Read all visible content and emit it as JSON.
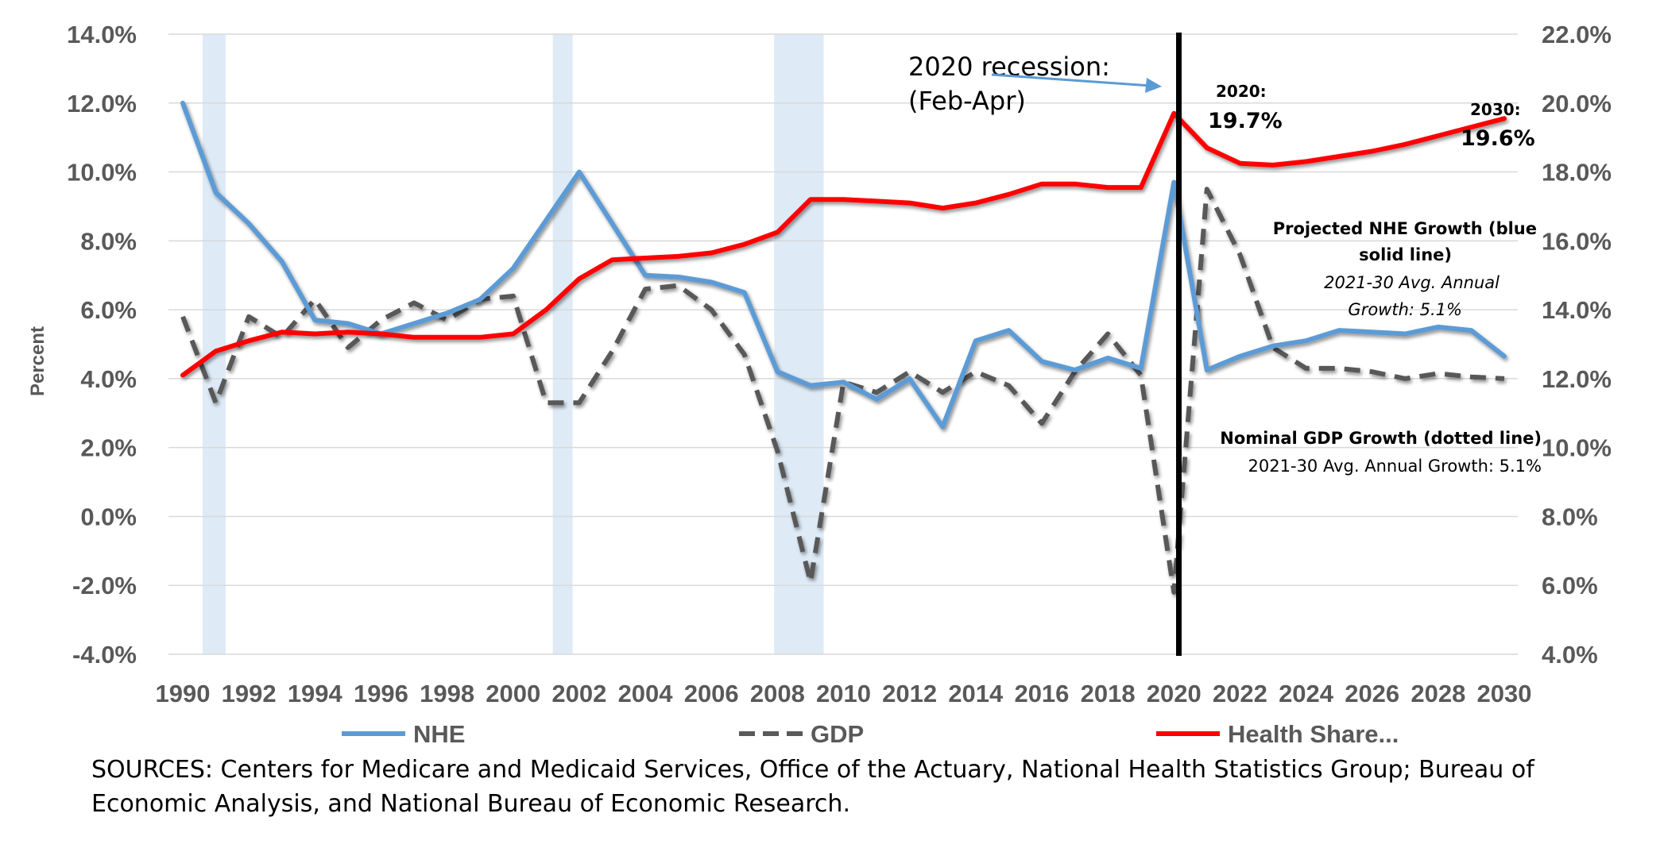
{
  "chart_data": {
    "type": "line",
    "x": [
      1990,
      1991,
      1992,
      1993,
      1994,
      1995,
      1996,
      1997,
      1998,
      1999,
      2000,
      2001,
      2002,
      2003,
      2004,
      2005,
      2006,
      2007,
      2008,
      2009,
      2010,
      2011,
      2012,
      2013,
      2014,
      2015,
      2016,
      2017,
      2018,
      2019,
      2020,
      2021,
      2022,
      2023,
      2024,
      2025,
      2026,
      2027,
      2028,
      2029,
      2030
    ],
    "x_ticks": [
      "1990",
      "1992",
      "1994",
      "1996",
      "1998",
      "2000",
      "2002",
      "2004",
      "2006",
      "2008",
      "2010",
      "2012",
      "2014",
      "2016",
      "2018",
      "2020",
      "2022",
      "2024",
      "2026",
      "2028",
      "2030"
    ],
    "ylabel": "Percent",
    "ylim": [
      -4,
      14
    ],
    "y_ticks": [
      "14.0%",
      "12.0%",
      "10.0%",
      "8.0%",
      "6.0%",
      "4.0%",
      "2.0%",
      "0.0%",
      "-2.0%",
      "-4.0%"
    ],
    "y2lim": [
      4,
      22
    ],
    "y2_ticks": [
      "22.0%",
      "20.0%",
      "18.0%",
      "16.0%",
      "14.0%",
      "12.0%",
      "10.0%",
      "8.0%",
      "6.0%",
      "4.0%"
    ],
    "series": [
      {
        "name": "NHE",
        "axis": "left",
        "style": "solid",
        "color": "#5B9BD5",
        "values": [
          12.0,
          9.4,
          8.5,
          7.4,
          5.7,
          5.6,
          5.3,
          5.6,
          5.9,
          6.3,
          7.2,
          8.6,
          10.0,
          8.5,
          7.0,
          6.95,
          6.8,
          6.5,
          4.2,
          3.8,
          3.9,
          3.4,
          4.0,
          2.6,
          5.1,
          5.4,
          4.5,
          4.25,
          4.6,
          4.3,
          9.7,
          4.25,
          4.65,
          4.95,
          5.1,
          5.4,
          5.35,
          5.3,
          5.5,
          5.4,
          4.65
        ]
      },
      {
        "name": "GDP",
        "axis": "left",
        "style": "dashed",
        "color": "#595959",
        "values": [
          5.8,
          3.3,
          5.8,
          5.2,
          6.3,
          4.9,
          5.7,
          6.2,
          5.7,
          6.3,
          6.4,
          3.3,
          3.3,
          4.8,
          6.6,
          6.7,
          6.0,
          4.7,
          1.9,
          -1.9,
          3.9,
          3.6,
          4.2,
          3.6,
          4.2,
          3.8,
          2.7,
          4.2,
          5.3,
          4.1,
          -2.2,
          9.5,
          7.6,
          4.9,
          4.3,
          4.3,
          4.2,
          4.0,
          4.15,
          4.05,
          4.0
        ]
      },
      {
        "name": "Health Share...",
        "axis": "right",
        "style": "solid",
        "color": "#FF0000",
        "values": [
          12.1,
          12.8,
          13.1,
          13.35,
          13.3,
          13.35,
          13.3,
          13.2,
          13.2,
          13.2,
          13.3,
          14.0,
          14.9,
          15.45,
          15.5,
          15.55,
          15.65,
          15.9,
          16.25,
          17.2,
          17.2,
          17.15,
          17.1,
          16.95,
          17.1,
          17.35,
          17.65,
          17.65,
          17.55,
          17.55,
          19.7,
          18.7,
          18.25,
          18.2,
          18.3,
          18.45,
          18.6,
          18.8,
          19.05,
          19.3,
          19.55
        ]
      }
    ],
    "recession_spans": [
      [
        1990.6,
        1991.3
      ],
      [
        2001.2,
        2001.8
      ],
      [
        2007.9,
        2009.4
      ],
      [
        2020.0,
        2020.3
      ]
    ],
    "legend": {
      "position": "bottom",
      "labels": [
        "NHE",
        "GDP",
        "Health Share..."
      ]
    },
    "annotations": {
      "recession_title": "2020 recession:",
      "recession_months": "(Feb-Apr)",
      "label_2020_year": "2020:",
      "label_2020_value": "19.7%",
      "label_2030_year": "2030:",
      "label_2030_value": "19.6%",
      "nhe_title_1": "Projected NHE Growth (blue",
      "nhe_title_2": "solid line)",
      "nhe_sub_1": "2021-30 Avg. Annual",
      "nhe_sub_2": "Growth: 5.1%",
      "gdp_title": "Nominal GDP Growth (dotted line)",
      "gdp_sub": "2021-30 Avg. Annual Growth: 5.1%"
    },
    "colors": {
      "recession_band": "#DEEBF7",
      "grid": "#D9D9D9",
      "axis_text": "#595959"
    }
  },
  "sources": {
    "line1": "SOURCES: Centers for Medicare and Medicaid Services, Office of the Actuary, National Health Statistics Group;  Bureau of",
    "line2": "Economic Analysis, and National Bureau of Economic Research."
  }
}
